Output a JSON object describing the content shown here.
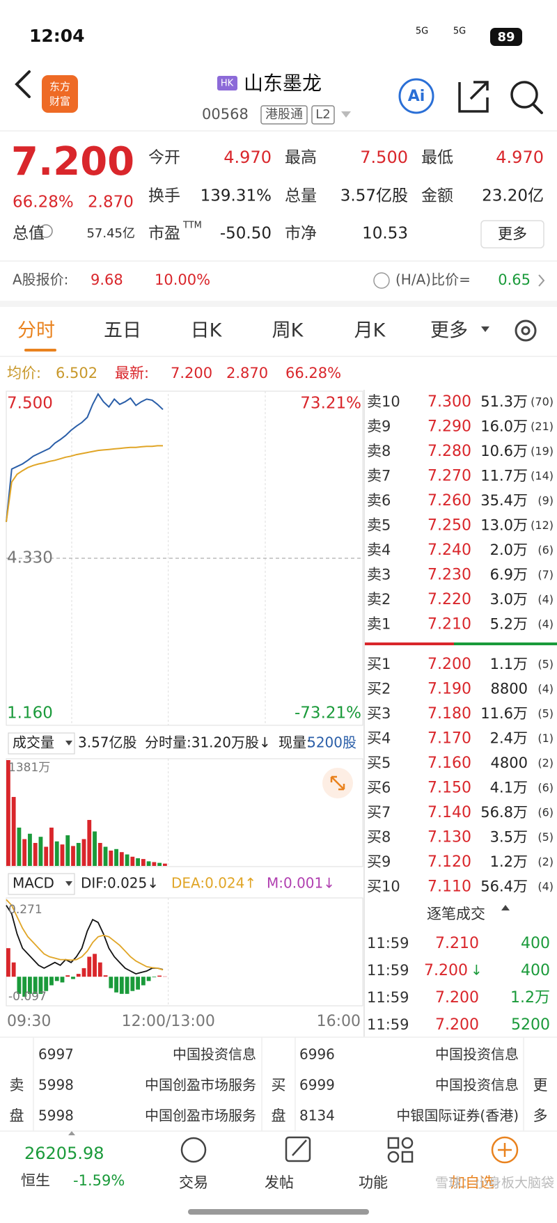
{
  "status_bar": {
    "time": "12:04",
    "network": "5G",
    "battery": "89"
  },
  "header": {
    "logo": [
      "东方",
      "财富"
    ],
    "badge": "HK",
    "name": "山东墨龙",
    "code": "00568",
    "market": "港股通",
    "level": "L2",
    "ai": "Ai"
  },
  "quote": {
    "price": "7.200",
    "change_pct": "66.28%",
    "change": "2.870",
    "stats": [
      [
        {
          "label": "今开",
          "value": "4.970"
        },
        {
          "label": "最高",
          "value": "7.500"
        },
        {
          "label": "最低",
          "value": "4.970"
        }
      ],
      [
        {
          "label": "换手",
          "value": "139.31%"
        },
        {
          "label": "总量",
          "value": "3.57亿股"
        },
        {
          "label": "金额",
          "value": "23.20亿"
        }
      ],
      [
        {
          "label": "总值",
          "value": "57.45亿"
        },
        {
          "label": "市盈",
          "sup": "TTM",
          "value": "-50.50"
        },
        {
          "label": "市净",
          "value": "10.53"
        }
      ]
    ],
    "more": "更多"
  },
  "a_share": {
    "label": "A股报价:",
    "price": "9.68",
    "pct": "10.00%",
    "ratio_label": "(H/A)比价=",
    "ratio": "0.65"
  },
  "tabs": [
    "分时",
    "五日",
    "日K",
    "周K",
    "月K",
    "更多"
  ],
  "intraday_info": {
    "avg_label": "均价:",
    "avg": "6.502",
    "latest_label": "最新:",
    "latest": "7.200",
    "change": "2.870",
    "pct": "66.28%"
  },
  "intraday_chart": {
    "type": "line",
    "x": [
      0,
      5,
      10,
      15,
      20,
      25,
      30,
      35,
      40,
      45,
      50,
      55,
      60,
      65,
      70,
      75,
      80,
      85,
      90,
      95,
      100,
      105,
      110,
      115,
      120,
      125,
      130,
      135,
      140,
      145
    ],
    "xlim": [
      0,
      330
    ],
    "xticks": [
      {
        "value": 0,
        "label": "09:30"
      },
      {
        "value": 150,
        "label": "12:00/13:00"
      },
      {
        "value": 330,
        "label": "16:00"
      }
    ],
    "ylim": [
      1.16,
      7.5
    ],
    "yticks": [
      {
        "value": 1.16,
        "label": "1.160"
      },
      {
        "value": 4.33,
        "label": "4.330"
      },
      {
        "value": 7.5,
        "label": "7.500"
      }
    ],
    "y2lim": [
      -73.21,
      73.21
    ],
    "y2ticks": [
      {
        "value": -73.21,
        "label": "-73.21%"
      },
      {
        "value": 73.21,
        "label": "73.21%"
      }
    ],
    "series": [
      {
        "color": "#2a5ea8",
        "values": [
          5.03,
          6.05,
          6.1,
          6.15,
          6.22,
          6.3,
          6.35,
          6.4,
          6.45,
          6.55,
          6.62,
          6.7,
          6.8,
          6.88,
          6.95,
          7.05,
          7.3,
          7.5,
          7.35,
          7.25,
          7.4,
          7.3,
          7.35,
          7.42,
          7.28,
          7.35,
          7.4,
          7.38,
          7.3,
          7.2
        ]
      },
      {
        "color": "#e0a526",
        "values": [
          5.03,
          5.8,
          5.95,
          6.02,
          6.08,
          6.12,
          6.15,
          6.17,
          6.2,
          6.22,
          6.25,
          6.28,
          6.3,
          6.33,
          6.35,
          6.37,
          6.39,
          6.41,
          6.42,
          6.43,
          6.44,
          6.45,
          6.46,
          6.47,
          6.47,
          6.48,
          6.49,
          6.49,
          6.5,
          6.5
        ]
      }
    ]
  },
  "volume_header": {
    "label": "成交量",
    "total": "3.57亿股",
    "period": "分时量:31.20万股↓",
    "current_label": "现量:",
    "current": "5200股"
  },
  "volume_chart": {
    "type": "bar",
    "x": [
      0,
      5,
      10,
      15,
      20,
      25,
      30,
      35,
      40,
      45,
      50,
      55,
      60,
      65,
      70,
      75,
      80,
      85,
      90,
      95,
      100,
      105,
      110,
      115,
      120,
      125,
      130,
      135,
      140,
      145
    ],
    "xlim": [
      0,
      330
    ],
    "ylim": [
      0,
      1381
    ],
    "yticks": [
      {
        "value": 1381,
        "label": "1381万"
      }
    ],
    "values": [
      1381,
      900,
      500,
      350,
      420,
      300,
      380,
      250,
      500,
      320,
      280,
      400,
      260,
      300,
      350,
      600,
      450,
      300,
      250,
      200,
      220,
      180,
      150,
      120,
      100,
      90,
      60,
      50,
      40,
      30
    ],
    "colors": [
      "#d9262b",
      "#d9262b",
      "#1a9a3a",
      "#d9262b",
      "#1a9a3a",
      "#d9262b",
      "#1a9a3a",
      "#d9262b",
      "#d9262b",
      "#1a9a3a",
      "#d9262b",
      "#1a9a3a",
      "#d9262b",
      "#1a9a3a",
      "#d9262b",
      "#d9262b",
      "#1a9a3a",
      "#d9262b",
      "#1a9a3a",
      "#d9262b",
      "#1a9a3a",
      "#d9262b",
      "#1a9a3a",
      "#d9262b",
      "#1a9a3a",
      "#d9262b",
      "#1a9a3a",
      "#d9262b",
      "#1a9a3a",
      "#d9262b"
    ]
  },
  "macd_header": {
    "label": "MACD",
    "dif": "DIF:0.025↓",
    "dea": "DEA:0.024↑",
    "m": "M:0.001↓"
  },
  "macd_chart": {
    "type": "bar",
    "x": [
      0,
      5,
      10,
      15,
      20,
      25,
      30,
      35,
      40,
      45,
      50,
      55,
      60,
      65,
      70,
      75,
      80,
      85,
      90,
      95,
      100,
      105,
      110,
      115,
      120,
      125,
      130,
      135,
      140,
      145
    ],
    "xlim": [
      0,
      330
    ],
    "ylim": [
      -0.097,
      0.271
    ],
    "yticks": [
      -0.097,
      0.271
    ],
    "values": [
      0.1,
      0.05,
      -0.06,
      -0.07,
      -0.06,
      -0.06,
      -0.06,
      -0.05,
      -0.03,
      -0.015,
      -0.02,
      0.005,
      -0.008,
      0.01,
      0.03,
      0.07,
      0.08,
      0.05,
      0.005,
      -0.04,
      -0.055,
      -0.06,
      -0.06,
      -0.05,
      -0.045,
      -0.03,
      -0.015,
      -0.002,
      0.004,
      0.001
    ],
    "series": [
      {
        "color": "#111111",
        "values": [
          0.25,
          0.22,
          0.15,
          0.1,
          0.08,
          0.06,
          0.04,
          0.03,
          0.04,
          0.05,
          0.04,
          0.06,
          0.05,
          0.07,
          0.1,
          0.16,
          0.2,
          0.19,
          0.15,
          0.1,
          0.07,
          0.05,
          0.03,
          0.02,
          0.01,
          0.015,
          0.02,
          0.03,
          0.03,
          0.025
        ]
      },
      {
        "color": "#e0a526",
        "values": [
          0.27,
          0.25,
          0.21,
          0.17,
          0.14,
          0.12,
          0.1,
          0.08,
          0.07,
          0.065,
          0.06,
          0.06,
          0.058,
          0.06,
          0.07,
          0.09,
          0.12,
          0.14,
          0.145,
          0.14,
          0.125,
          0.11,
          0.09,
          0.07,
          0.055,
          0.045,
          0.035,
          0.032,
          0.03,
          0.024
        ]
      }
    ]
  },
  "order_book": {
    "asks": [
      {
        "label": "卖10",
        "price": "7.300",
        "volume": "51.3万",
        "count": "(70)"
      },
      {
        "label": "卖9",
        "price": "7.290",
        "volume": "16.0万",
        "count": "(21)"
      },
      {
        "label": "卖8",
        "price": "7.280",
        "volume": "10.6万",
        "count": "(19)"
      },
      {
        "label": "卖7",
        "price": "7.270",
        "volume": "11.7万",
        "count": "(14)"
      },
      {
        "label": "卖6",
        "price": "7.260",
        "volume": "35.4万",
        "count": "(9)"
      },
      {
        "label": "卖5",
        "price": "7.250",
        "volume": "13.0万",
        "count": "(12)"
      },
      {
        "label": "卖4",
        "price": "7.240",
        "volume": "2.0万",
        "count": "(6)"
      },
      {
        "label": "卖3",
        "price": "7.230",
        "volume": "6.9万",
        "count": "(7)"
      },
      {
        "label": "卖2",
        "price": "7.220",
        "volume": "3.0万",
        "count": "(4)"
      },
      {
        "label": "卖1",
        "price": "7.210",
        "volume": "5.2万",
        "count": "(4)"
      }
    ],
    "bids": [
      {
        "label": "买1",
        "price": "7.200",
        "volume": "1.1万",
        "count": "(5)"
      },
      {
        "label": "买2",
        "price": "7.190",
        "volume": "8800",
        "count": "(4)"
      },
      {
        "label": "买3",
        "price": "7.180",
        "volume": "11.6万",
        "count": "(5)"
      },
      {
        "label": "买4",
        "price": "7.170",
        "volume": "2.4万",
        "count": "(1)"
      },
      {
        "label": "买5",
        "price": "7.160",
        "volume": "4800",
        "count": "(2)"
      },
      {
        "label": "买6",
        "price": "7.150",
        "volume": "4.1万",
        "count": "(6)"
      },
      {
        "label": "买7",
        "price": "7.140",
        "volume": "56.8万",
        "count": "(6)"
      },
      {
        "label": "买8",
        "price": "7.130",
        "volume": "3.5万",
        "count": "(5)"
      },
      {
        "label": "买9",
        "price": "7.120",
        "volume": "1.2万",
        "count": "(2)"
      },
      {
        "label": "买10",
        "price": "7.110",
        "volume": "56.4万",
        "count": "(4)"
      }
    ]
  },
  "trades": {
    "title": "逐笔成交",
    "rows": [
      {
        "time": "11:59",
        "price": "7.210",
        "volume": "400"
      },
      {
        "time": "11:59",
        "price": "7.200",
        "arrow": "↓",
        "volume": "400"
      },
      {
        "time": "11:59",
        "price": "7.200",
        "volume": "1.2万"
      },
      {
        "time": "11:59",
        "price": "7.200",
        "volume": "5200"
      }
    ]
  },
  "brokers": {
    "sell_label": [
      "卖",
      "盘"
    ],
    "sell": [
      [
        "6997",
        "中国投资信息"
      ],
      [
        "5998",
        "中国创盈市场服务"
      ],
      [
        "5998",
        "中国创盈市场服务"
      ]
    ],
    "buy_label": [
      "买",
      "盘"
    ],
    "buy": [
      [
        "6996",
        "中国投资信息"
      ],
      [
        "6999",
        "中国投资信息"
      ],
      [
        "8134",
        "中银国际证券(香港)"
      ]
    ],
    "more": [
      "更",
      "多"
    ]
  },
  "bottom_nav": {
    "index_value": "26205.98",
    "index_name": "恒生",
    "index_change": "-1.59%",
    "items": [
      "交易",
      "发帖",
      "功能",
      "加自选"
    ],
    "watermark": "雪球：小身板大脑袋"
  }
}
